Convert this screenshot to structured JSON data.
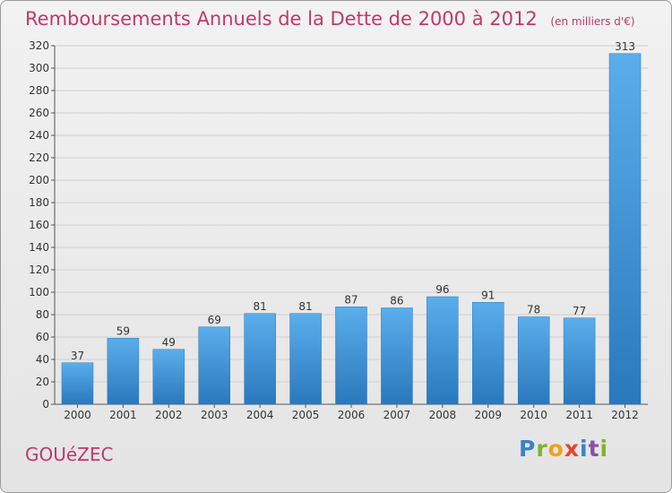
{
  "chart_data": {
    "type": "bar",
    "title": "Remboursements Annuels de la Dette de 2000 à 2012",
    "subtitle": "(en milliers d'€)",
    "categories": [
      "2000",
      "2001",
      "2002",
      "2003",
      "2004",
      "2005",
      "2006",
      "2007",
      "2008",
      "2009",
      "2010",
      "2011",
      "2012"
    ],
    "values": [
      37,
      59,
      49,
      69,
      81,
      81,
      87,
      86,
      96,
      91,
      78,
      77,
      313
    ],
    "ylim": [
      0,
      320
    ],
    "yticks": [
      0,
      20,
      40,
      60,
      80,
      100,
      120,
      140,
      160,
      180,
      200,
      220,
      240,
      260,
      280,
      300,
      320
    ],
    "grid": true,
    "bar_color": "#3a8fd6"
  },
  "place_name": "GOUéZEC",
  "brand": {
    "letters": [
      "P",
      "r",
      "o",
      "x",
      "i",
      "t",
      "i"
    ]
  }
}
